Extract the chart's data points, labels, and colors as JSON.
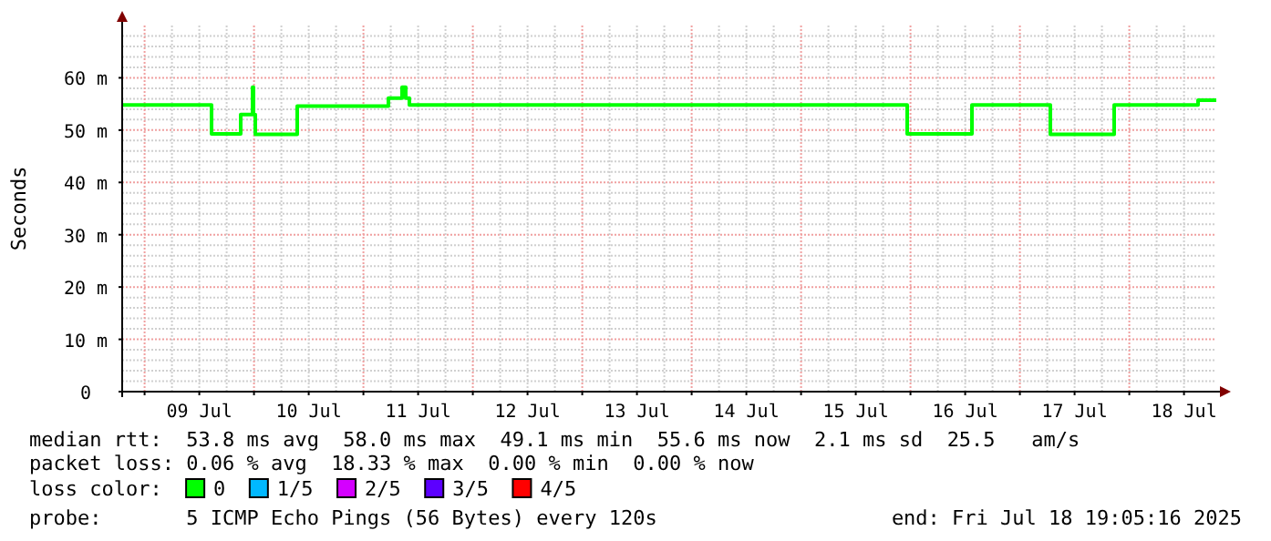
{
  "chart_data": {
    "type": "step",
    "ylabel": "Seconds",
    "legend_title": "loss color:",
    "legend": "bottom",
    "grid": true,
    "marker": "none",
    "line_style": "solid",
    "xlim": [
      "2025-07-08T19:05",
      "2025-07-18T19:05"
    ],
    "xticks": [
      {
        "value": "2025-07-09T00:00",
        "label": null
      },
      {
        "value": "2025-07-09T12:00",
        "label": "09 Jul"
      },
      {
        "value": "2025-07-10T00:00",
        "label": null
      },
      {
        "value": "2025-07-10T12:00",
        "label": "10 Jul"
      },
      {
        "value": "2025-07-11T00:00",
        "label": null
      },
      {
        "value": "2025-07-11T12:00",
        "label": "11 Jul"
      },
      {
        "value": "2025-07-12T00:00",
        "label": null
      },
      {
        "value": "2025-07-12T12:00",
        "label": "12 Jul"
      },
      {
        "value": "2025-07-13T00:00",
        "label": null
      },
      {
        "value": "2025-07-13T12:00",
        "label": "13 Jul"
      },
      {
        "value": "2025-07-14T00:00",
        "label": null
      },
      {
        "value": "2025-07-14T12:00",
        "label": "14 Jul"
      },
      {
        "value": "2025-07-15T00:00",
        "label": null
      },
      {
        "value": "2025-07-15T12:00",
        "label": "15 Jul"
      },
      {
        "value": "2025-07-16T00:00",
        "label": null
      },
      {
        "value": "2025-07-16T12:00",
        "label": "16 Jul"
      },
      {
        "value": "2025-07-17T00:00",
        "label": null
      },
      {
        "value": "2025-07-17T12:00",
        "label": "17 Jul"
      },
      {
        "value": "2025-07-18T00:00",
        "label": null
      },
      {
        "value": "2025-07-18T12:00",
        "label": "18 Jul"
      }
    ],
    "ylim": [
      0,
      70
    ],
    "yticks": [
      {
        "value": 0,
        "label": "0"
      },
      {
        "value": 10,
        "label": "10 m"
      },
      {
        "value": 20,
        "label": "20 m"
      },
      {
        "value": 30,
        "label": "30 m"
      },
      {
        "value": 40,
        "label": "40 m"
      },
      {
        "value": 50,
        "label": "50 m"
      },
      {
        "value": 60,
        "label": "60 m"
      }
    ],
    "series": [
      {
        "name": "0",
        "color": "#00ff00",
        "x": [
          "2025-07-08T19:05",
          "2025-07-09T14:41",
          "2025-07-09T21:05",
          "2025-07-09T23:41",
          "2025-07-09T23:53",
          "2025-07-10T00:17",
          "2025-07-10T09:29",
          "2025-07-11T05:29",
          "2025-07-11T08:29",
          "2025-07-11T09:17",
          "2025-07-11T10:05",
          "2025-07-15T23:17",
          "2025-07-16T13:29",
          "2025-07-17T06:41",
          "2025-07-17T20:41",
          "2025-07-18T15:05",
          "2025-07-18T19:05"
        ],
        "values": [
          54.8,
          49.3,
          53.0,
          58.2,
          53.0,
          49.2,
          54.6,
          56.1,
          58.2,
          56.1,
          54.8,
          49.3,
          54.8,
          49.2,
          54.8,
          55.7,
          55.7
        ]
      },
      {
        "name": "1/5",
        "color": "#00b8ff"
      },
      {
        "name": "2/5",
        "color": "#d400ff"
      },
      {
        "name": "3/5",
        "color": "#5c00ff"
      },
      {
        "name": "4/5",
        "color": "#ff0000"
      }
    ],
    "annotations": [
      "median rtt:  53.8 ms avg  58.0 ms max  49.1 ms min  55.6 ms now  2.1 ms sd  25.5   am/s",
      "packet loss: 0.06 % avg  18.33 % max  0.00 % min  0.00 % now",
      "probe:       5 ICMP Echo Pings (56 Bytes) every 120s",
      "end: Fri Jul 18 19:05:16 2025"
    ]
  }
}
